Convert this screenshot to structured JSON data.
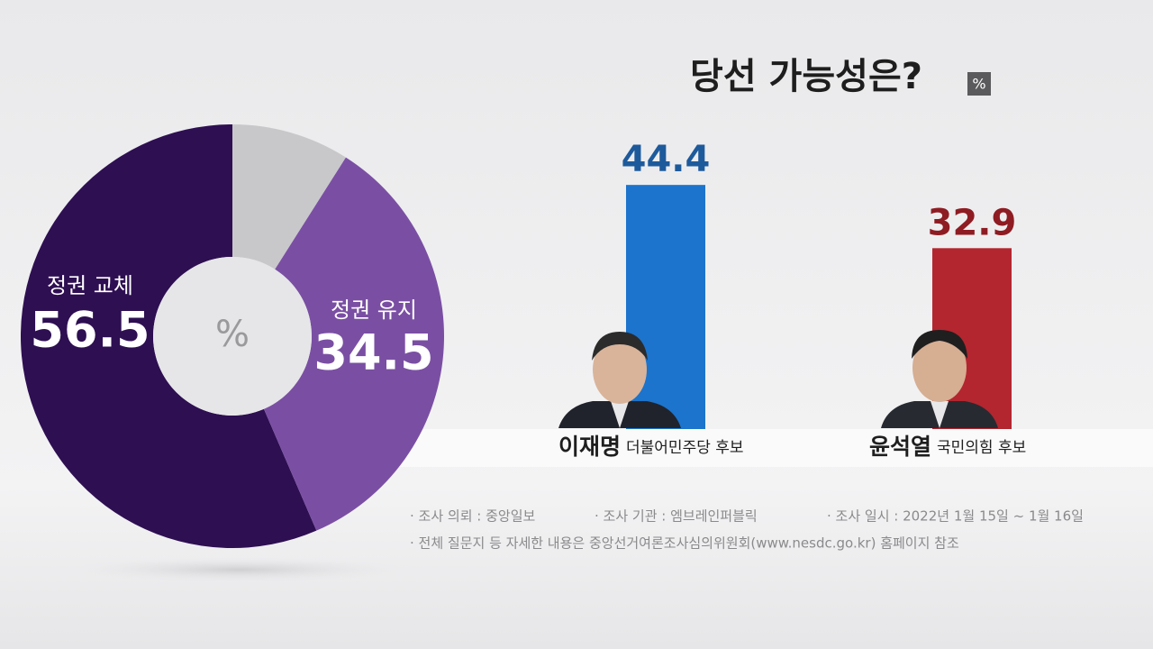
{
  "chart_data": [
    {
      "type": "donut",
      "center_label": "%",
      "categories": [
        "정권 교체",
        "정권 유지",
        null
      ],
      "values": [
        56.5,
        34.5,
        9
      ],
      "colors": [
        "#2e0f52",
        "#7a4fa3",
        "#c8c8ca"
      ]
    },
    {
      "type": "bar",
      "title": "당선 가능성은?",
      "unit": "%",
      "categories": [
        "이재명",
        "윤석열"
      ],
      "party_labels": [
        "더불어민주당 후보",
        "국민의힘 후보"
      ],
      "values": [
        44.4,
        32.9
      ],
      "colors": [
        "#1c74cc",
        "#b3262f"
      ],
      "label_colors": [
        "#1d5a9c",
        "#8e1c22"
      ]
    }
  ],
  "notes": [
    "· 조사 의뢰 : 중앙일보",
    "· 조사 기관 : 엠브레인퍼블릭",
    "· 조사 일시 : 2022년 1월 15일 ~ 1월 16일",
    "· 전체 질문지 등 자세한 내용은 중앙선거여론조사심의위원회(www.nesdc.go.kr) 홈페이지 참조"
  ]
}
